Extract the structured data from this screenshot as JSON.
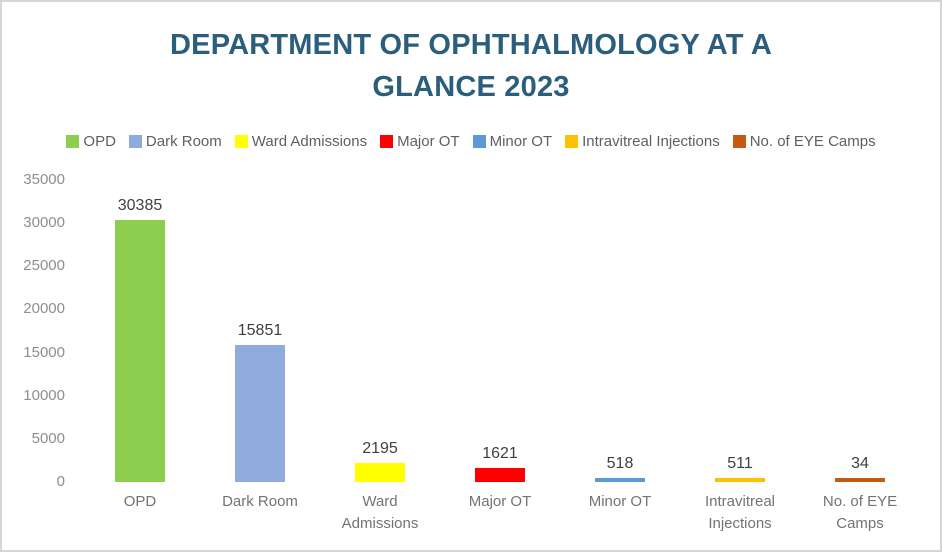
{
  "title_lines": [
    "DEPARTMENT OF OPHTHALMOLOGY AT A",
    "GLANCE 2023"
  ],
  "styles": {
    "title_color": "#2B5D7D",
    "legend_text_color": "#5F5F5F",
    "tick_text_color": "#8E8E8E",
    "data_label_color": "#404040",
    "category_text_color": "#737373",
    "frame_border_color": "#D5D5D5",
    "background_color": "#FFFFFF"
  },
  "chart_data": {
    "type": "bar",
    "title": "DEPARTMENT OF OPHTHALMOLOGY AT A GLANCE 2023",
    "categories": [
      "OPD",
      "Dark Room",
      "Ward Admissions",
      "Major OT",
      "Minor OT",
      "Intravitreal Injections",
      "No. of EYE Camps"
    ],
    "values": [
      30385,
      15851,
      2195,
      1621,
      518,
      511,
      34
    ],
    "colors": [
      "#8DCE4F",
      "#8FAADC",
      "#FFFF00",
      "#FF0000",
      "#5B9BD5",
      "#FFC000",
      "#C55A11"
    ],
    "data_labels": [
      30385,
      15851,
      2195,
      1621,
      518,
      511,
      34
    ],
    "legend": [
      {
        "label": "OPD",
        "color": "#8DCE4F"
      },
      {
        "label": "Dark Room",
        "color": "#8FAADC"
      },
      {
        "label": "Ward Admissions",
        "color": "#FFFF00"
      },
      {
        "label": "Major OT",
        "color": "#FF0000"
      },
      {
        "label": "Minor OT",
        "color": "#5B9BD5"
      },
      {
        "label": "Intravitreal Injections",
        "color": "#FFC000"
      },
      {
        "label": "No. of EYE Camps",
        "color": "#C55A11"
      }
    ],
    "legend_position": "top",
    "grid": false,
    "xlabel": "",
    "ylabel": "",
    "ylim": [
      0,
      35000
    ],
    "yticks": [
      0,
      5000,
      10000,
      15000,
      20000,
      25000,
      30000,
      35000
    ]
  }
}
